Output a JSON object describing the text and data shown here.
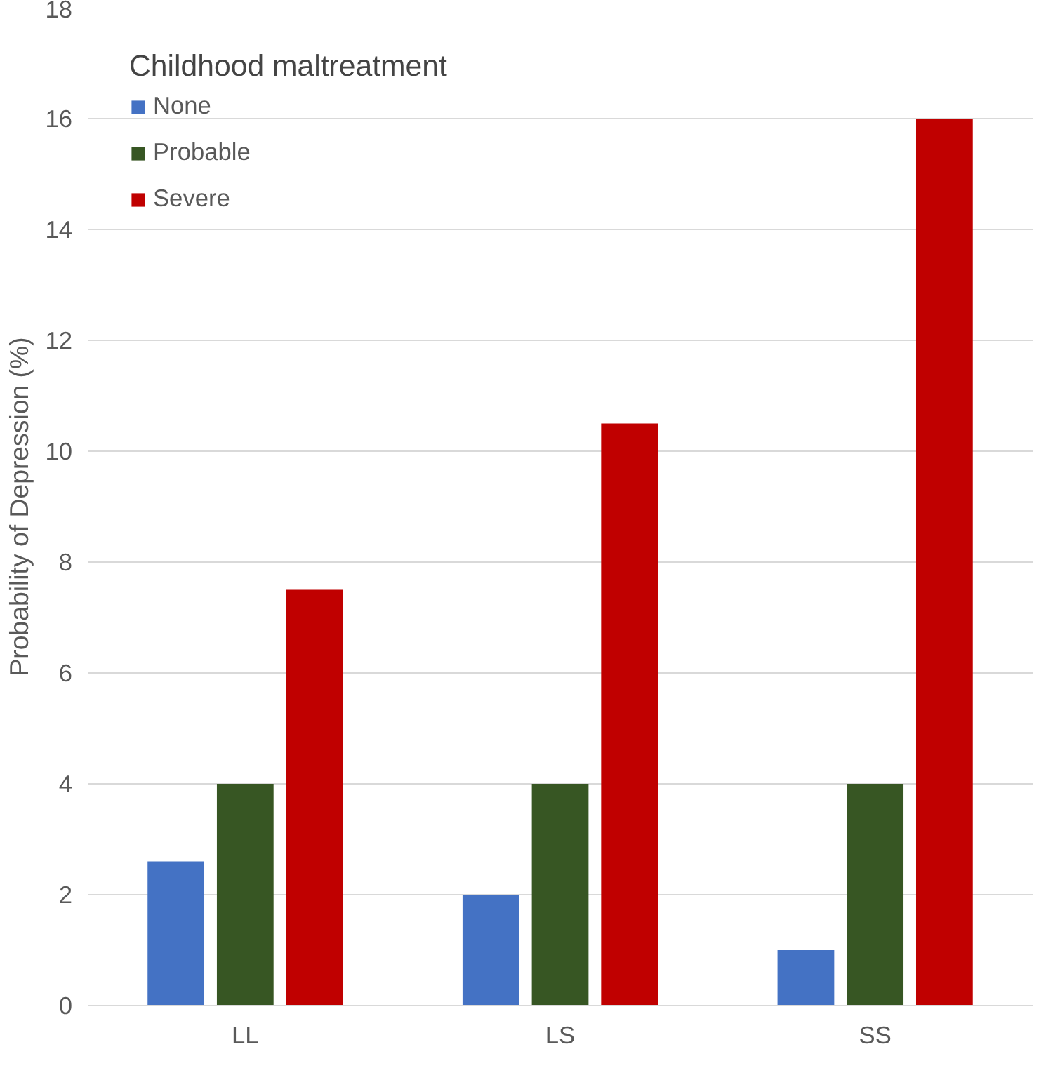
{
  "chart_data": {
    "type": "bar",
    "ylabel": "Probability of Depression (%)",
    "legend_title": "Childhood maltreatment",
    "categories": [
      "LL",
      "LS",
      "SS"
    ],
    "series": [
      {
        "name": "None",
        "color": "#4472c4",
        "values": [
          2.6,
          2,
          1
        ]
      },
      {
        "name": "Probable",
        "color": "#375623",
        "values": [
          4,
          4,
          4
        ]
      },
      {
        "name": "Severe",
        "color": "#c00000",
        "values": [
          7.5,
          10.5,
          16
        ]
      }
    ],
    "ylim": [
      0,
      18
    ],
    "yticks": [
      0,
      2,
      4,
      6,
      8,
      10,
      12,
      14,
      16,
      18
    ],
    "grid": "y",
    "legend": "top left"
  }
}
